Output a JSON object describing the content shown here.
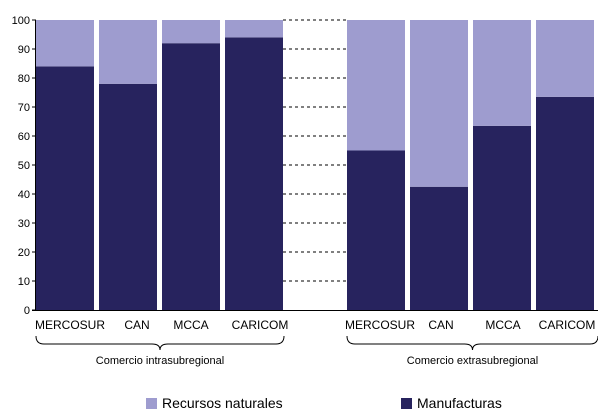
{
  "chart_data": {
    "type": "bar",
    "stacked": true,
    "ylim": [
      0,
      100
    ],
    "yticks": [
      0,
      10,
      20,
      30,
      40,
      50,
      60,
      70,
      80,
      90,
      100
    ],
    "categories": [
      "MERCOSUR",
      "CAN",
      "MCCA",
      "CARICOM",
      "MERCOSUR",
      "CAN",
      "MCCA",
      "CARICOM"
    ],
    "groups": [
      {
        "label": "Comercio intrasubregional",
        "indices": [
          0,
          1,
          2,
          3
        ]
      },
      {
        "label": "Comercio extrasubregional",
        "indices": [
          4,
          5,
          6,
          7
        ]
      }
    ],
    "series": [
      {
        "name": "Manufacturas",
        "color": "#27235e",
        "values": [
          84,
          78,
          92,
          94,
          55,
          42.5,
          63.5,
          73.5
        ]
      },
      {
        "name": "Recursos naturales",
        "color": "#9e9ccf",
        "values": [
          16,
          22,
          8,
          6,
          45,
          57.5,
          36.5,
          26.5
        ]
      }
    ],
    "legend": {
      "position": "bottom",
      "items": [
        {
          "label": "Recursos naturales",
          "color": "#9e9ccf"
        },
        {
          "label": "Manufacturas",
          "color": "#27235e"
        }
      ]
    },
    "grid": "dashed between groups"
  }
}
